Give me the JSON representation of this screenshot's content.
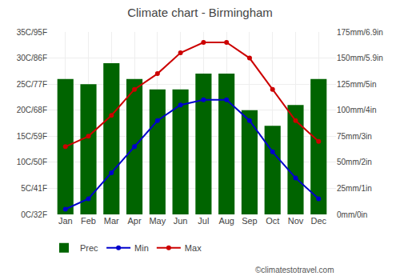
{
  "chart_data": {
    "type": "combo",
    "title": "Climate chart - Birmingham",
    "categories": [
      "Jan",
      "Feb",
      "Mar",
      "Apr",
      "May",
      "Jun",
      "Jul",
      "Aug",
      "Sep",
      "Oct",
      "Nov",
      "Dec"
    ],
    "series": [
      {
        "name": "Prec",
        "type": "bar",
        "axis": "y2",
        "color": "#006400",
        "values": [
          130,
          125,
          145,
          130,
          120,
          120,
          135,
          135,
          100,
          85,
          105,
          130
        ]
      },
      {
        "name": "Min",
        "type": "line",
        "color": "#0000cc",
        "marker": "circle",
        "line_style": "solid",
        "values": [
          1,
          3,
          8,
          13,
          18,
          21,
          22,
          22,
          18,
          12,
          7,
          3
        ]
      },
      {
        "name": "Max",
        "type": "line",
        "color": "#cc0000",
        "marker": "circle",
        "line_style": "solid",
        "values": [
          13,
          15,
          19,
          24,
          27,
          31,
          33,
          33,
          30,
          24,
          18,
          14
        ]
      }
    ],
    "ylim": [
      0,
      35
    ],
    "yticks": [
      {
        "value": 0,
        "label": "0C/32F"
      },
      {
        "value": 5,
        "label": "5C/41F"
      },
      {
        "value": 10,
        "label": "10C/50F"
      },
      {
        "value": 15,
        "label": "15C/59F"
      },
      {
        "value": 20,
        "label": "20C/68F"
      },
      {
        "value": 25,
        "label": "25C/77F"
      },
      {
        "value": 30,
        "label": "30C/86F"
      },
      {
        "value": 35,
        "label": "35C/95F"
      }
    ],
    "y2lim": [
      0,
      175
    ],
    "y2ticks": [
      {
        "value": 0,
        "label": "0mm/0in"
      },
      {
        "value": 25,
        "label": "25mm/1in"
      },
      {
        "value": 50,
        "label": "50mm/2in"
      },
      {
        "value": 75,
        "label": "75mm/3in"
      },
      {
        "value": 100,
        "label": "100mm/4in"
      },
      {
        "value": 125,
        "label": "125mm/5in"
      },
      {
        "value": 150,
        "label": "150mm/5.9in"
      },
      {
        "value": 175,
        "label": "175mm/6.9in"
      }
    ],
    "grid": true,
    "legend": "bottom",
    "annotations": [
      "©climatestotravel.com"
    ]
  }
}
